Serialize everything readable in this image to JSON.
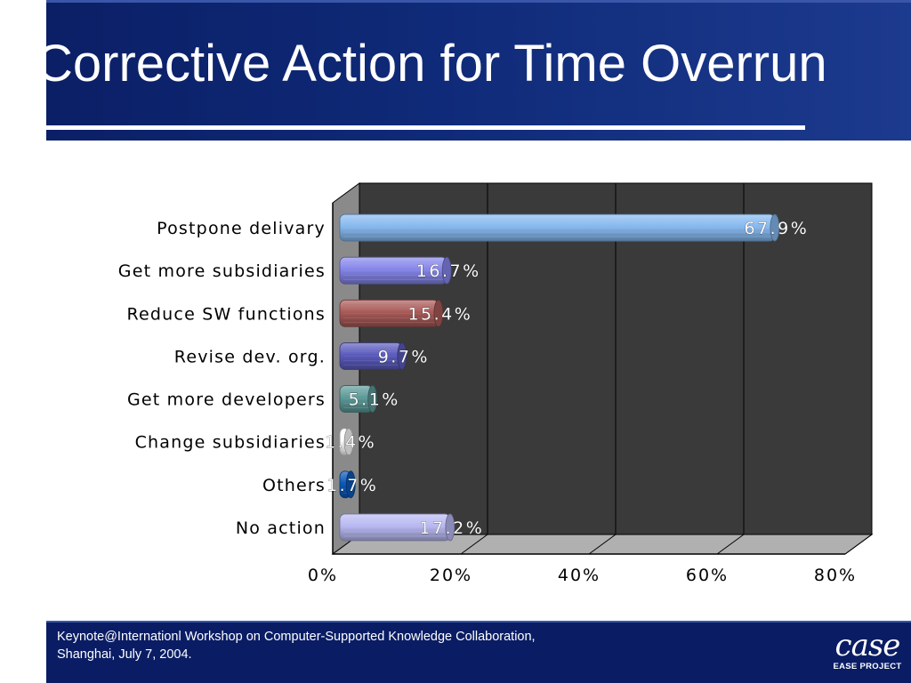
{
  "slide": {
    "title": "Corrective Action for Time Overrun",
    "footer_line1": "Keynote@Internationl Workshop on Computer-Supported Knowledge Collaboration,",
    "footer_line2": "Shanghai, July 7, 2004.",
    "logo_mark": "case",
    "logo_sub": "EASE PROJECT"
  },
  "chart_data": {
    "type": "bar",
    "orientation": "horizontal",
    "categories": [
      "Postpone delivary",
      "Get more subsidiaries",
      "Reduce SW functions",
      "Revise dev. org.",
      "Get more developers",
      "Change subsidiaries",
      "Others",
      "No action"
    ],
    "values": [
      67.9,
      16.7,
      15.4,
      9.7,
      5.1,
      1.4,
      1.7,
      17.2
    ],
    "data_labels": [
      "67.9%",
      "16.7%",
      "15.4%",
      "9.7%",
      "5.1%",
      "1.4%",
      "1.7%",
      "17.2%"
    ],
    "bar_colors": [
      "#86b8ef",
      "#8585ea",
      "#a85a58",
      "#5b5bbd",
      "#5c9a98",
      "#ffffff",
      "#0a58b8",
      "#b8b8f2"
    ],
    "x_ticks": [
      "0%",
      "20%",
      "40%",
      "60%",
      "80%"
    ],
    "xlim": [
      0,
      80
    ],
    "unit": "%",
    "grid": true,
    "plot_background": "#3a3a3a"
  }
}
